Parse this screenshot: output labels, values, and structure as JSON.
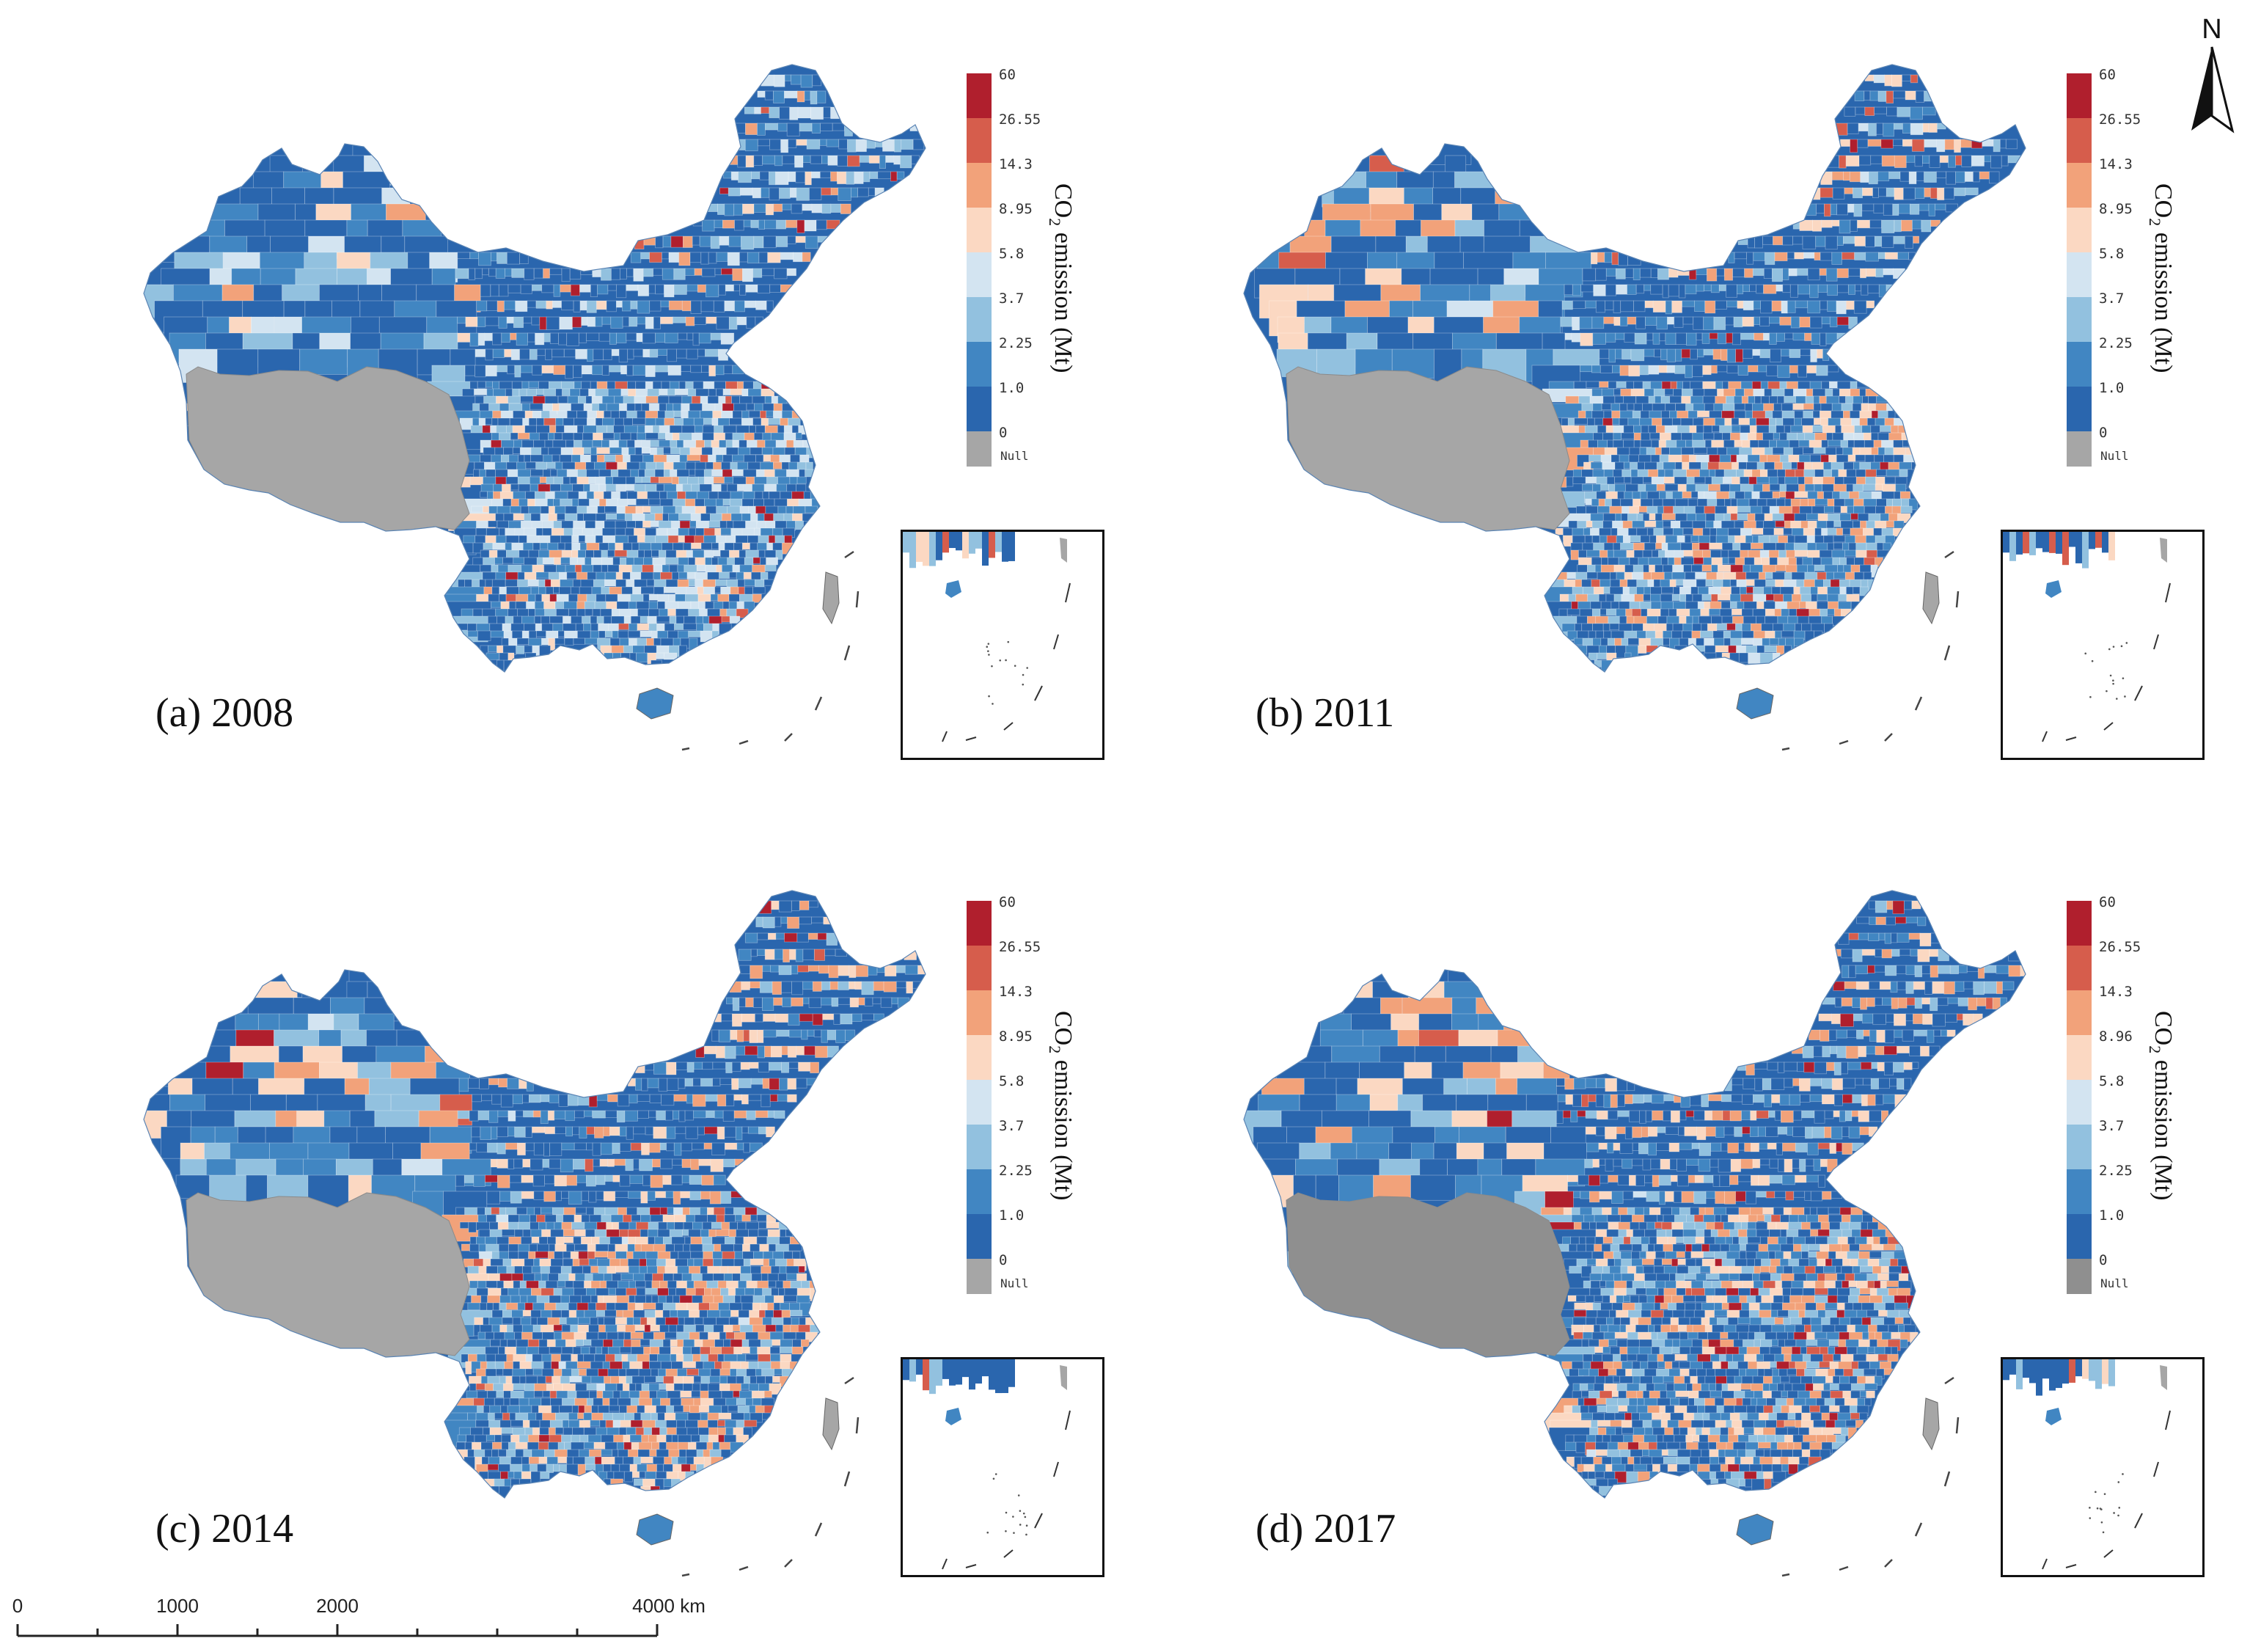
{
  "colors": {
    "c0": "#2a66ae",
    "c1": "#4186c2",
    "c2": "#92c1df",
    "c3": "#d3e4f1",
    "c4": "#fbd8c2",
    "c5": "#f2a27a",
    "c6": "#d65d4c",
    "c7": "#b01f2d",
    "null": "#a6a6a6",
    "null_2017": "#8f8f8f"
  },
  "panels": [
    {
      "id": "a",
      "label": "(a) 2008",
      "legend": [
        "60",
        "26.55",
        "14.3",
        "8.95",
        "5.8",
        "3.7",
        "2.25",
        "1.0",
        "0"
      ],
      "null_label": "Null",
      "title_main": "CO",
      "title_sub": "2",
      "title_rest": " emission (Mt)"
    },
    {
      "id": "b",
      "label": "(b) 2011",
      "legend": [
        "60",
        "26.55",
        "14.3",
        "8.95",
        "5.8",
        "3.7",
        "2.25",
        "1.0",
        "0"
      ],
      "null_label": "Null",
      "title_main": "CO",
      "title_sub": "2",
      "title_rest": " emission (Mt)"
    },
    {
      "id": "c",
      "label": "(c) 2014",
      "legend": [
        "60",
        "26.55",
        "14.3",
        "8.95",
        "5.8",
        "3.7",
        "2.25",
        "1.0",
        "0"
      ],
      "null_label": "Null",
      "title_main": "CO",
      "title_sub": "2",
      "title_rest": " emission (Mt)"
    },
    {
      "id": "d",
      "label": "(d) 2017",
      "legend": [
        "60",
        "26.55",
        "14.3",
        "8.96",
        "5.8",
        "3.7",
        "2.25",
        "1.0",
        "0"
      ],
      "null_label": "Null",
      "title_main": "CO",
      "title_sub": "2",
      "title_rest": " emission (Mt)"
    }
  ],
  "north_arrow": {
    "label": "N"
  },
  "scale_bar": {
    "labels": [
      "0",
      "1000",
      "2000",
      "4000 km"
    ]
  }
}
